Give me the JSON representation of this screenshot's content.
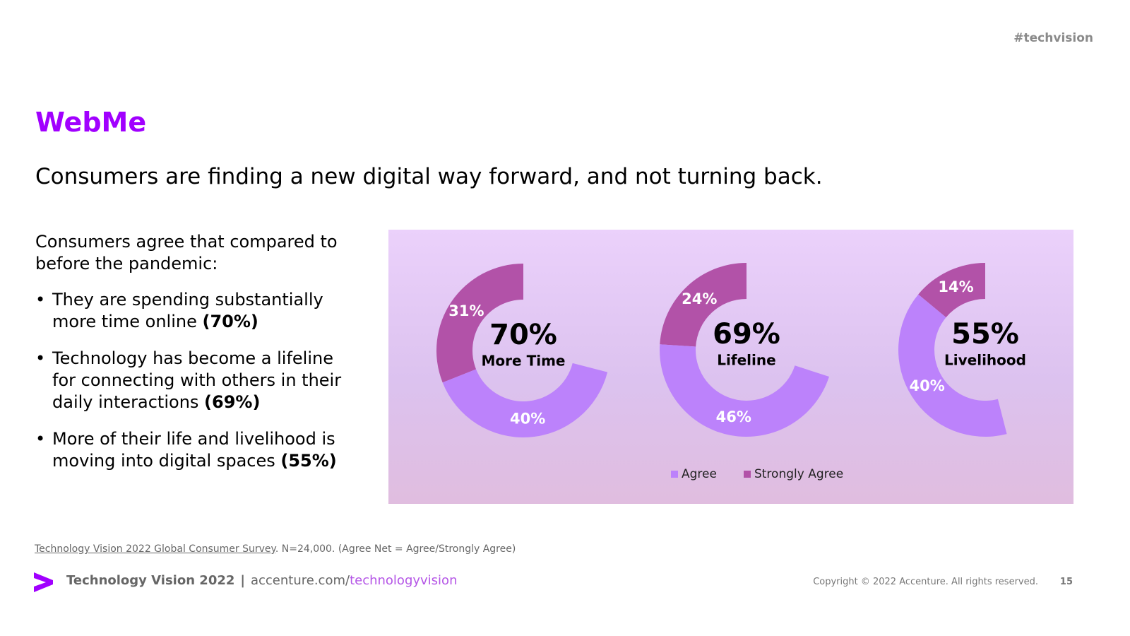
{
  "header": {
    "hashtag": "#techvision"
  },
  "slide": {
    "section_title": "WebMe",
    "headline": "Consumers are finding a new digital way forward, and not turning back."
  },
  "left_text": {
    "intro": "Consumers agree that compared to before the pandemic:",
    "bullets": [
      {
        "text": "They are spending substantially more time online ",
        "value": "(70%)"
      },
      {
        "text": "Technology has become a lifeline for connecting with others in their daily interactions ",
        "value": "(69%)"
      },
      {
        "text": "More of their life and livelihood is moving into digital spaces ",
        "value": "(55%)"
      }
    ]
  },
  "colors": {
    "accent": "#a100ff",
    "agree": "#bc82fb",
    "strongly_agree": "#b252a8"
  },
  "chart_data": {
    "type": "donut",
    "legend": [
      "Agree",
      "Strongly Agree"
    ],
    "legend_position": "bottom-center",
    "charts": [
      {
        "center_value": "70%",
        "center_label": "More Time",
        "agree": 40,
        "strongly_agree": 31,
        "agree_label": "40%",
        "strongly_agree_label": "31%"
      },
      {
        "center_value": "69%",
        "center_label": "Lifeline",
        "agree": 46,
        "strongly_agree": 24,
        "agree_label": "46%",
        "strongly_agree_label": "24%"
      },
      {
        "center_value": "55%",
        "center_label": "Livelihood",
        "agree": 40,
        "strongly_agree": 14,
        "agree_label": "40%",
        "strongly_agree_label": "14%"
      }
    ]
  },
  "source": {
    "link_text": "Technology Vision 2022 Global Consumer Survey",
    "rest": ". N=24,000. (Agree Net = Agree/Strongly Agree)"
  },
  "footer": {
    "logo_icon": "accenture-greater-than-logo",
    "brand": "Technology Vision 2022",
    "separator": "|",
    "url_prefix": "accenture.com/",
    "url_suffix": "technologyvision",
    "copyright": "Copyright © 2022 Accenture. All rights reserved.",
    "page_number": "15"
  }
}
